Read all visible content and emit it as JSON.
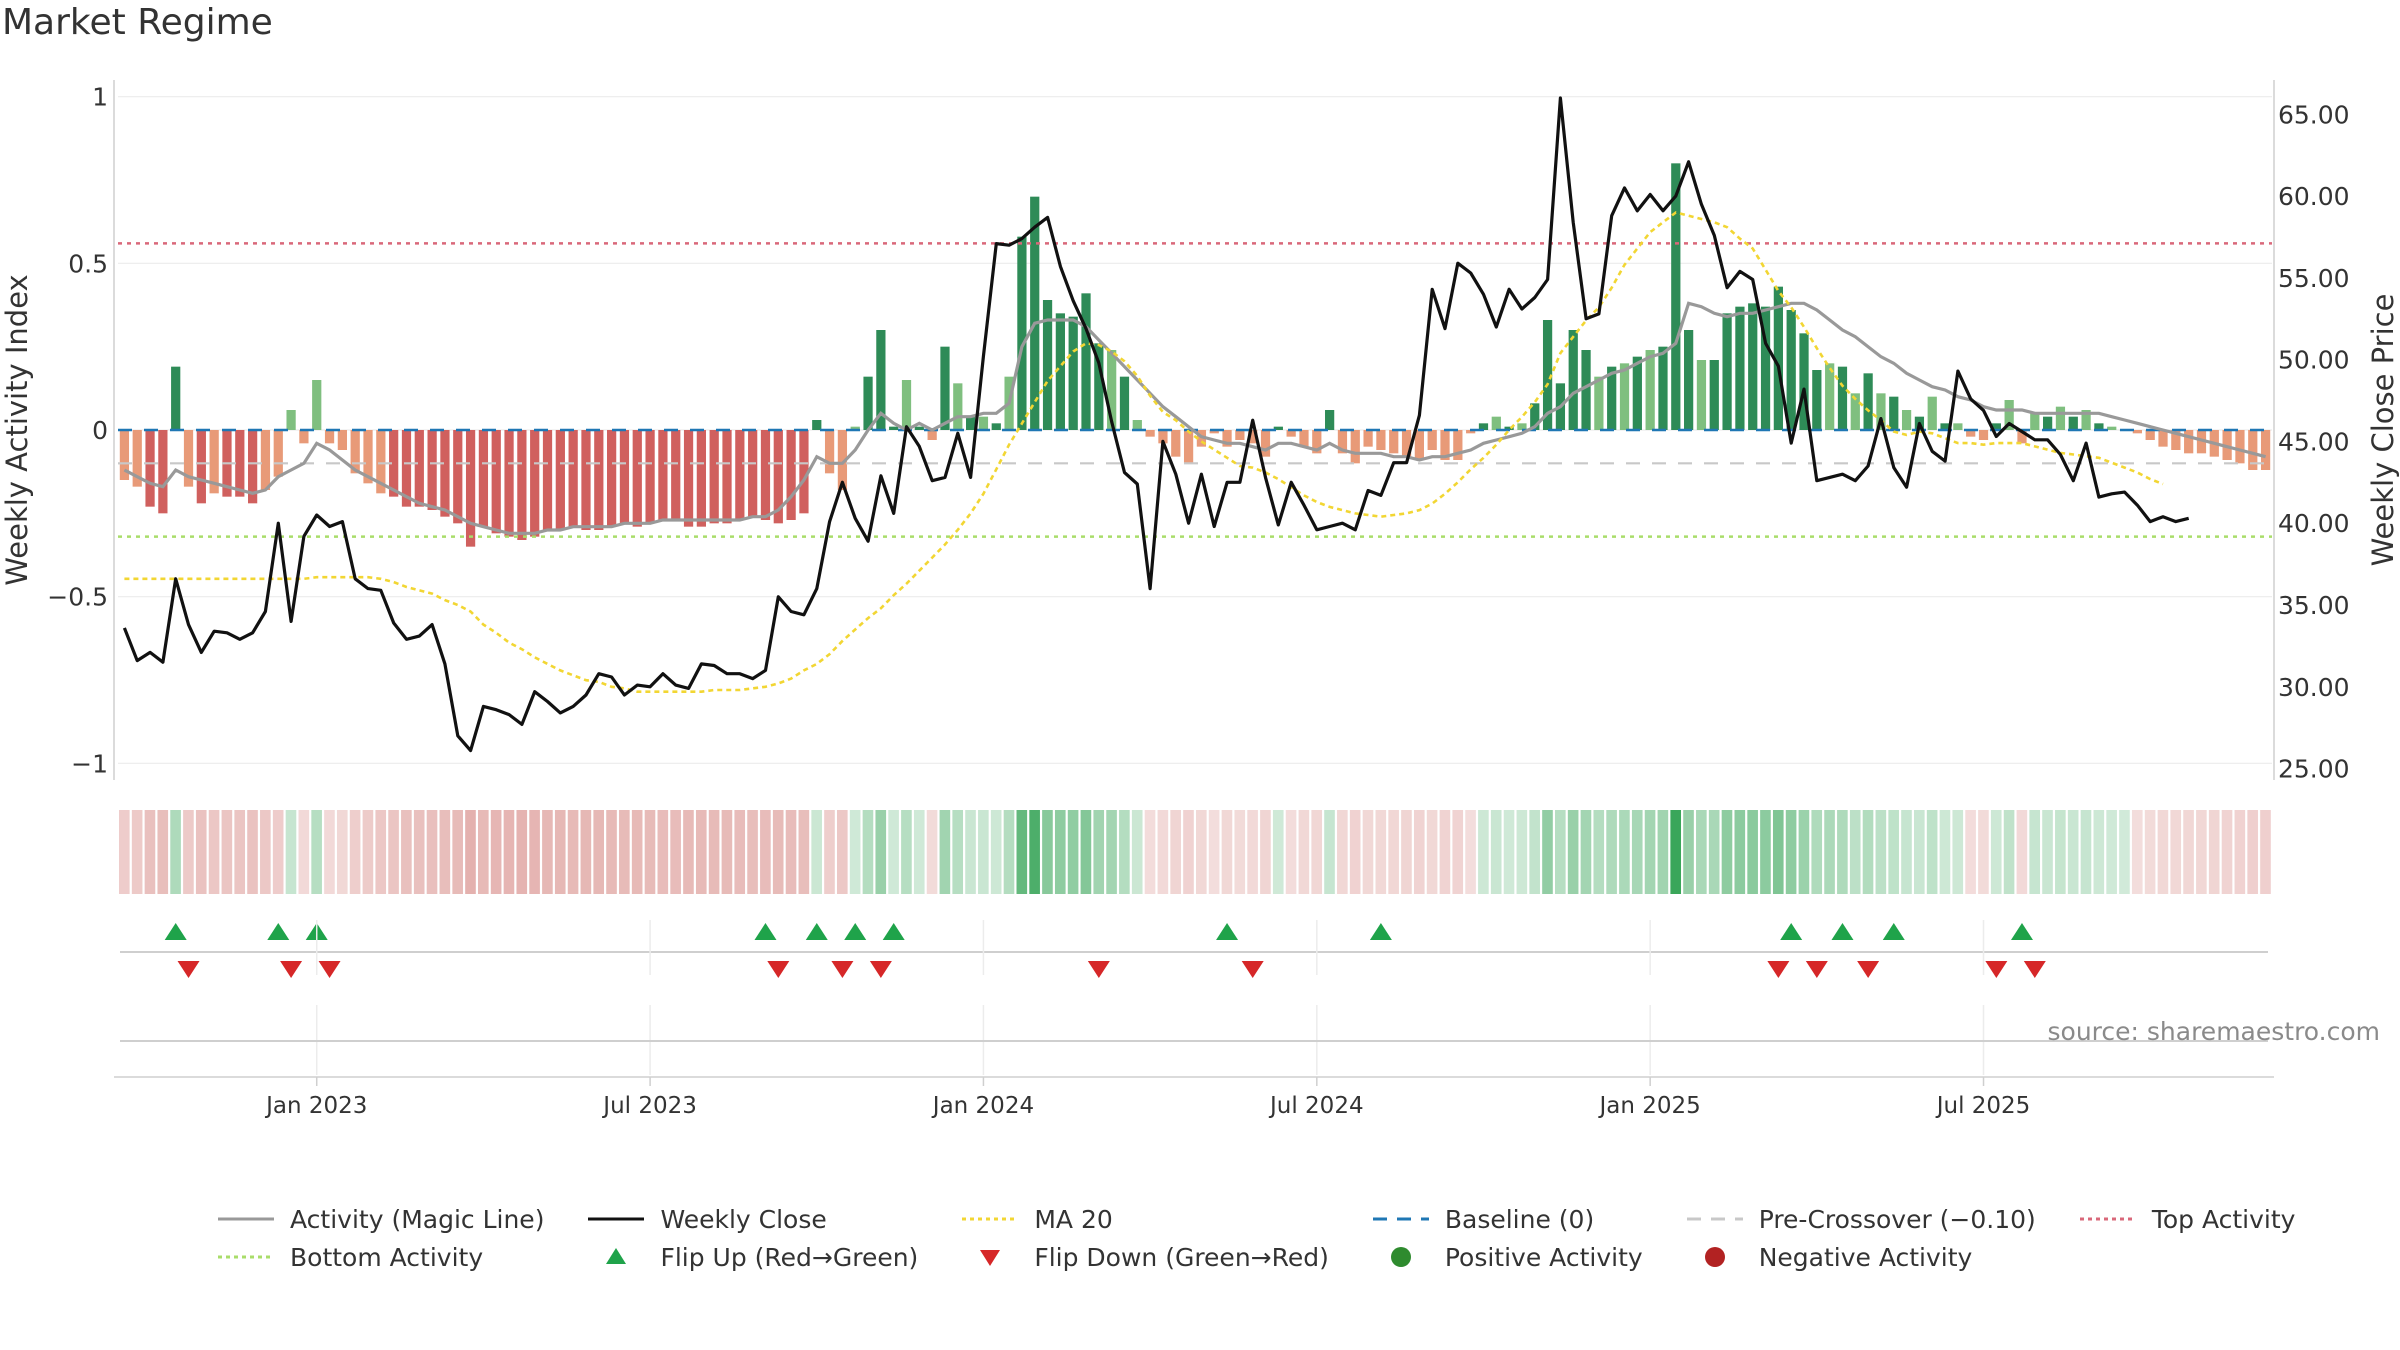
{
  "title": "Market Regime",
  "source_text": "source: sharemaestro.com",
  "colors": {
    "pos_dark": "#2e8b57",
    "pos_light": "#7fbf7f",
    "neg_dark": "#d0605e",
    "neg_light": "#e89a78",
    "magic_line": "#999999",
    "close": "#111111",
    "ma20": "#f2d633",
    "baseline": "#1f77b4",
    "pre_crossover": "#c8c8c8",
    "top_activity": "#d9687a",
    "bottom_activity": "#a9dd6a",
    "flip_up": "#1fa34a",
    "flip_down": "#d62728",
    "positive_dot": "#2e8b2e",
    "negative_dot": "#b22222"
  },
  "chart_data": {
    "type": "bar",
    "title": "Market Regime",
    "x_ticks": [
      "Jan 2023",
      "Jul 2023",
      "Jan 2024",
      "Jul 2024",
      "Jan 2025",
      "Jul 2025"
    ],
    "y_left": {
      "label": "Weekly Activity Index",
      "lim": [
        -1.05,
        1.05
      ],
      "ticks": [
        1,
        0.5,
        0,
        -0.5,
        -1
      ],
      "tick_labels": [
        "1",
        "0.5",
        "0",
        "−0.5",
        "−1"
      ]
    },
    "y_right": {
      "label": "Weekly Close Price",
      "lim": [
        24.3,
        67.1
      ],
      "ticks": [
        65,
        60,
        55,
        50,
        45,
        40,
        35,
        30,
        25
      ],
      "tick_labels": [
        "65.00",
        "60.00",
        "55.00",
        "50.00",
        "45.00",
        "40.00",
        "35.00",
        "30.00",
        "25.00"
      ]
    },
    "reference_lines": {
      "top_activity": 0.56,
      "bottom_activity": -0.32,
      "baseline": 0,
      "pre_crossover": -0.1
    },
    "activity_bars": [
      -0.15,
      -0.17,
      -0.23,
      -0.25,
      0.19,
      -0.17,
      -0.22,
      -0.19,
      -0.2,
      -0.2,
      -0.22,
      -0.18,
      -0.14,
      0.06,
      -0.04,
      0.15,
      -0.04,
      -0.06,
      -0.13,
      -0.16,
      -0.19,
      -0.2,
      -0.23,
      -0.23,
      -0.24,
      -0.26,
      -0.28,
      -0.35,
      -0.29,
      -0.31,
      -0.32,
      -0.33,
      -0.32,
      -0.3,
      -0.3,
      -0.29,
      -0.3,
      -0.3,
      -0.29,
      -0.28,
      -0.29,
      -0.28,
      -0.27,
      -0.27,
      -0.29,
      -0.29,
      -0.28,
      -0.28,
      -0.27,
      -0.26,
      -0.27,
      -0.28,
      -0.27,
      -0.25,
      0.03,
      -0.13,
      -0.18,
      0.01,
      0.16,
      0.3,
      0.01,
      0.15,
      0.01,
      -0.03,
      0.25,
      0.14,
      0.04,
      0.04,
      0.02,
      0.16,
      0.58,
      0.7,
      0.39,
      0.35,
      0.34,
      0.41,
      0.26,
      0.24,
      0.16,
      0.03,
      -0.02,
      -0.04,
      -0.08,
      -0.1,
      -0.05,
      -0.01,
      -0.05,
      -0.03,
      -0.04,
      -0.08,
      0.01,
      -0.02,
      -0.05,
      -0.07,
      0.06,
      -0.07,
      -0.1,
      -0.05,
      -0.06,
      -0.07,
      -0.08,
      -0.09,
      -0.06,
      -0.09,
      -0.09,
      -0.01,
      0.02,
      0.04,
      0.01,
      0.02,
      0.08,
      0.33,
      0.14,
      0.3,
      0.24,
      0.16,
      0.19,
      0.2,
      0.22,
      0.24,
      0.25,
      0.8,
      0.3,
      0.21,
      0.21,
      0.35,
      0.37,
      0.38,
      0.37,
      0.43,
      0.36,
      0.29,
      0.18,
      0.2,
      0.19,
      0.11,
      0.17,
      0.11,
      0.1,
      0.06,
      0.04,
      0.1,
      0.02,
      0.02,
      -0.02,
      -0.03,
      0.02,
      0.09,
      -0.04,
      0.05,
      0.04,
      0.07,
      0.04,
      0.06,
      0.02,
      0.01,
      0.0,
      -0.01,
      -0.03,
      -0.05,
      -0.06,
      -0.07,
      -0.07,
      -0.08,
      -0.09,
      -0.1,
      -0.12,
      -0.12
    ],
    "magic_line": [
      -0.12,
      -0.14,
      -0.16,
      -0.17,
      -0.12,
      -0.14,
      -0.15,
      -0.16,
      -0.17,
      -0.18,
      -0.19,
      -0.18,
      -0.14,
      -0.12,
      -0.1,
      -0.04,
      -0.06,
      -0.09,
      -0.12,
      -0.14,
      -0.16,
      -0.18,
      -0.2,
      -0.22,
      -0.23,
      -0.24,
      -0.26,
      -0.28,
      -0.29,
      -0.3,
      -0.31,
      -0.31,
      -0.31,
      -0.3,
      -0.3,
      -0.29,
      -0.29,
      -0.29,
      -0.29,
      -0.28,
      -0.28,
      -0.28,
      -0.27,
      -0.27,
      -0.27,
      -0.27,
      -0.27,
      -0.27,
      -0.27,
      -0.26,
      -0.26,
      -0.24,
      -0.2,
      -0.15,
      -0.08,
      -0.1,
      -0.1,
      -0.06,
      0.0,
      0.05,
      0.02,
      0.0,
      0.02,
      0.0,
      0.02,
      0.04,
      0.04,
      0.05,
      0.05,
      0.08,
      0.25,
      0.32,
      0.33,
      0.33,
      0.33,
      0.31,
      0.27,
      0.23,
      0.19,
      0.15,
      0.11,
      0.07,
      0.04,
      0.01,
      -0.02,
      -0.03,
      -0.04,
      -0.04,
      -0.05,
      -0.06,
      -0.04,
      -0.04,
      -0.05,
      -0.06,
      -0.04,
      -0.06,
      -0.07,
      -0.07,
      -0.07,
      -0.08,
      -0.08,
      -0.09,
      -0.08,
      -0.08,
      -0.07,
      -0.06,
      -0.04,
      -0.03,
      -0.02,
      -0.01,
      0.01,
      0.05,
      0.07,
      0.11,
      0.13,
      0.15,
      0.17,
      0.18,
      0.2,
      0.22,
      0.23,
      0.26,
      0.38,
      0.37,
      0.35,
      0.34,
      0.35,
      0.35,
      0.36,
      0.37,
      0.38,
      0.38,
      0.36,
      0.33,
      0.3,
      0.28,
      0.25,
      0.22,
      0.2,
      0.17,
      0.15,
      0.13,
      0.12,
      0.1,
      0.09,
      0.07,
      0.06,
      0.06,
      0.06,
      0.05,
      0.05,
      0.05,
      0.05,
      0.05,
      0.05,
      0.04,
      0.03,
      0.02,
      0.01,
      0.0,
      -0.01,
      -0.02,
      -0.03,
      -0.04,
      -0.05,
      -0.06,
      -0.07,
      -0.08
    ],
    "weekly_close": [
      33.6,
      31.6,
      32.1,
      31.5,
      36.6,
      33.8,
      32.1,
      33.4,
      33.3,
      32.9,
      33.3,
      34.6,
      40.0,
      34.0,
      39.2,
      40.5,
      39.8,
      40.1,
      36.6,
      36.0,
      35.9,
      33.9,
      32.9,
      33.1,
      33.8,
      31.4,
      27.0,
      26.1,
      28.8,
      28.6,
      28.3,
      27.7,
      29.7,
      29.1,
      28.4,
      28.8,
      29.5,
      30.8,
      30.6,
      29.5,
      30.1,
      30.0,
      30.8,
      30.1,
      29.9,
      31.4,
      31.3,
      30.8,
      30.8,
      30.5,
      31.0,
      35.5,
      34.6,
      34.4,
      36.0,
      40.1,
      42.5,
      40.3,
      38.9,
      42.9,
      40.6,
      45.9,
      44.7,
      42.6,
      42.8,
      45.5,
      42.8,
      50.2,
      57.1,
      57.0,
      57.4,
      58.1,
      58.7,
      55.7,
      53.6,
      51.9,
      49.8,
      46.2,
      43.1,
      42.4,
      36.0,
      45.0,
      43.0,
      40.0,
      43.0,
      39.8,
      42.5,
      42.5,
      46.3,
      42.8,
      39.9,
      42.5,
      41.1,
      39.6,
      39.8,
      40.0,
      39.6,
      42.0,
      41.7,
      43.7,
      43.7,
      46.6,
      54.3,
      51.9,
      55.9,
      55.3,
      54.0,
      52.0,
      54.3,
      53.1,
      53.8,
      54.9,
      66.0,
      58.4,
      52.5,
      52.8,
      58.8,
      60.5,
      59.1,
      60.1,
      59.1,
      60.0,
      62.1,
      59.5,
      57.6,
      54.4,
      55.4,
      54.9,
      51.0,
      49.6,
      44.9,
      48.2,
      42.6,
      42.8,
      43.0,
      42.6,
      43.5,
      46.4,
      43.4,
      42.2,
      46.1,
      44.4,
      43.8,
      49.3,
      47.6,
      46.9,
      45.3,
      46.1,
      45.6,
      45.1,
      45.1,
      44.2,
      42.6,
      44.9,
      41.6,
      41.8,
      41.9,
      41.1,
      40.1,
      40.4,
      40.1,
      40.3
    ],
    "ma20": [
      36.6,
      36.6,
      36.6,
      36.6,
      36.6,
      36.6,
      36.6,
      36.6,
      36.6,
      36.6,
      36.6,
      36.6,
      36.6,
      36.6,
      36.6,
      36.7,
      36.7,
      36.7,
      36.7,
      36.7,
      36.6,
      36.4,
      36.1,
      35.9,
      35.7,
      35.3,
      35.0,
      34.6,
      33.8,
      33.3,
      32.7,
      32.3,
      31.8,
      31.4,
      31.0,
      30.7,
      30.4,
      30.3,
      30.0,
      29.9,
      29.7,
      29.7,
      29.7,
      29.7,
      29.7,
      29.7,
      29.8,
      29.8,
      29.8,
      29.9,
      30.0,
      30.2,
      30.5,
      31.0,
      31.4,
      32.0,
      32.8,
      33.5,
      34.2,
      34.8,
      35.6,
      36.3,
      37.1,
      37.9,
      38.7,
      39.6,
      40.6,
      41.8,
      43.3,
      44.8,
      46.1,
      47.4,
      48.7,
      49.6,
      50.5,
      51.0,
      50.9,
      50.5,
      49.9,
      49.0,
      47.8,
      46.8,
      46.3,
      45.6,
      45.0,
      44.5,
      44.0,
      43.5,
      43.4,
      43.1,
      42.7,
      42.2,
      41.7,
      41.3,
      41.0,
      40.8,
      40.6,
      40.5,
      40.4,
      40.5,
      40.6,
      40.8,
      41.2,
      41.8,
      42.5,
      43.3,
      44.0,
      44.8,
      45.7,
      46.5,
      47.4,
      48.5,
      50.4,
      51.4,
      52.4,
      53.2,
      54.4,
      55.8,
      56.8,
      57.8,
      58.4,
      59.0,
      58.8,
      58.6,
      58.4,
      58.1,
      57.4,
      56.8,
      55.5,
      54.2,
      53.2,
      52.0,
      50.7,
      49.5,
      48.4,
      47.6,
      46.9,
      46.3,
      45.6,
      45.4,
      45.6,
      45.5,
      45.2,
      44.9,
      44.9,
      44.8,
      44.9,
      44.9,
      44.9,
      44.7,
      44.5,
      44.3,
      44.2,
      44.1,
      44.0,
      43.7,
      43.4,
      43.1,
      42.7,
      42.4
    ],
    "regime_strip": [
      -0.15,
      -0.17,
      -0.23,
      -0.25,
      0.19,
      -0.17,
      -0.22,
      -0.19,
      -0.2,
      -0.2,
      -0.22,
      -0.18,
      -0.14,
      0.06,
      -0.04,
      0.15,
      -0.04,
      -0.06,
      -0.13,
      -0.16,
      -0.19,
      -0.2,
      -0.23,
      -0.23,
      -0.24,
      -0.26,
      -0.28,
      -0.35,
      -0.29,
      -0.31,
      -0.32,
      -0.33,
      -0.32,
      -0.3,
      -0.3,
      -0.29,
      -0.3,
      -0.3,
      -0.29,
      -0.28,
      -0.29,
      -0.28,
      -0.27,
      -0.27,
      -0.29,
      -0.29,
      -0.28,
      -0.28,
      -0.27,
      -0.26,
      -0.27,
      -0.28,
      -0.27,
      -0.25,
      0.03,
      -0.13,
      -0.18,
      0.01,
      0.16,
      0.3,
      0.01,
      0.15,
      0.01,
      -0.03,
      0.25,
      0.14,
      0.04,
      0.04,
      0.02,
      0.16,
      0.58,
      0.7,
      0.39,
      0.35,
      0.34,
      0.41,
      0.26,
      0.24,
      0.16,
      0.03,
      -0.02,
      -0.04,
      -0.08,
      -0.1,
      -0.05,
      -0.01,
      -0.05,
      -0.03,
      -0.04,
      -0.08,
      0.01,
      -0.02,
      -0.05,
      -0.07,
      0.06,
      -0.07,
      -0.1,
      -0.05,
      -0.06,
      -0.07,
      -0.08,
      -0.09,
      -0.06,
      -0.09,
      -0.09,
      -0.01,
      0.02,
      0.04,
      0.01,
      0.02,
      0.08,
      0.33,
      0.14,
      0.3,
      0.24,
      0.16,
      0.19,
      0.2,
      0.22,
      0.24,
      0.25,
      0.8,
      0.3,
      0.21,
      0.21,
      0.35,
      0.37,
      0.38,
      0.37,
      0.43,
      0.36,
      0.29,
      0.18,
      0.2,
      0.19,
      0.11,
      0.17,
      0.11,
      0.1,
      0.06,
      0.04,
      0.1,
      0.02,
      0.02,
      -0.02,
      -0.03,
      0.02,
      0.09,
      -0.04,
      0.05,
      0.04,
      0.07,
      0.04,
      0.06,
      0.02,
      0.01,
      0.0,
      -0.01,
      -0.03,
      -0.05,
      -0.06,
      -0.07,
      -0.07,
      -0.08,
      -0.09,
      -0.1,
      -0.12,
      -0.12
    ],
    "flip_up_weeks": [
      4,
      12,
      15,
      50,
      54,
      57,
      60,
      86,
      98,
      130,
      134,
      138,
      148
    ],
    "flip_down_weeks": [
      5,
      13,
      16,
      51,
      56,
      59,
      76,
      88,
      129,
      132,
      136,
      146,
      149
    ],
    "legend": [
      {
        "key": "magic",
        "label": "Activity (Magic Line)",
        "kind": "line"
      },
      {
        "key": "close",
        "label": "Weekly Close",
        "kind": "line"
      },
      {
        "key": "ma20",
        "label": "MA 20",
        "kind": "dotted"
      },
      {
        "key": "baseline",
        "label": "Baseline (0)",
        "kind": "dashed"
      },
      {
        "key": "pre",
        "label": "Pre-Crossover (−0.10)",
        "kind": "dashed"
      },
      {
        "key": "top",
        "label": "Top Activity",
        "kind": "dotted"
      },
      {
        "key": "bottom",
        "label": "Bottom Activity",
        "kind": "dotted"
      },
      {
        "key": "flipup",
        "label": "Flip Up (Red→Green)",
        "kind": "triangle-up"
      },
      {
        "key": "flipdown",
        "label": "Flip Down (Green→Red)",
        "kind": "triangle-down"
      },
      {
        "key": "posdot",
        "label": "Positive Activity",
        "kind": "circle"
      },
      {
        "key": "negdot",
        "label": "Negative Activity",
        "kind": "circle"
      }
    ]
  }
}
